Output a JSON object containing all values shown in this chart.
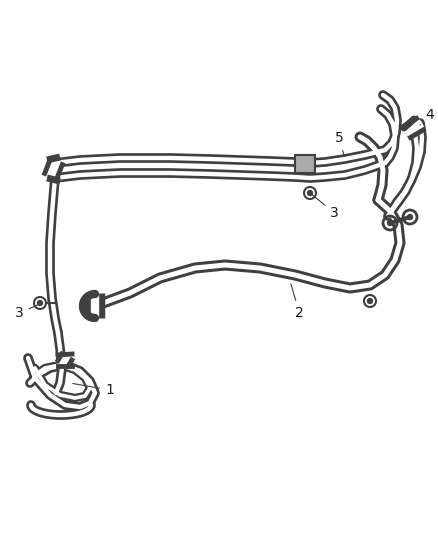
{
  "bg_color": "#ffffff",
  "line_color": "#404040",
  "figsize": [
    4.38,
    5.33
  ],
  "dpi": 100,
  "hose_lw": 7,
  "hose_inner_ratio": 0.45
}
